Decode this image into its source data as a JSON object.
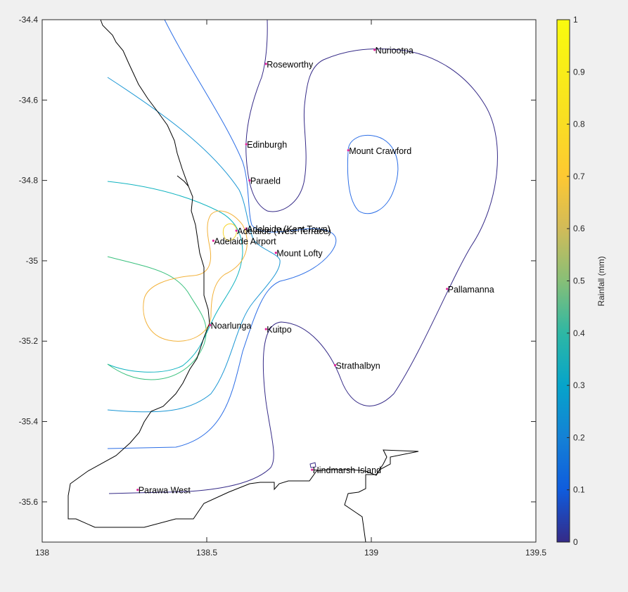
{
  "chart_data": {
    "type": "contour",
    "title": "",
    "xlabel": "",
    "ylabel": "",
    "xlim": [
      138,
      139.5
    ],
    "ylim": [
      -35.7,
      -34.4
    ],
    "x_ticks": [
      "138",
      "138.5",
      "139",
      "139.5"
    ],
    "y_ticks": [
      "-34.4",
      "-34.6",
      "-34.8",
      "-35",
      "-35.2",
      "-35.4",
      "-35.6"
    ],
    "grid": false,
    "colorbar": {
      "label": "Rainfall (mm)",
      "range": [
        0,
        1
      ],
      "ticks": [
        "0",
        "0.1",
        "0.2",
        "0.3",
        "0.4",
        "0.5",
        "0.6",
        "0.7",
        "0.8",
        "0.9",
        "1"
      ],
      "colormap": "parula"
    },
    "stations": [
      {
        "name": "Nuriootpa",
        "lon": 139.01,
        "lat": -34.475
      },
      {
        "name": "Roseworthy",
        "lon": 138.68,
        "lat": -34.51
      },
      {
        "name": "Edinburgh",
        "lon": 138.62,
        "lat": -34.71
      },
      {
        "name": "Mount Crawford",
        "lon": 138.93,
        "lat": -34.725
      },
      {
        "name": "Paraeld",
        "lon": 138.63,
        "lat": -34.8
      },
      {
        "name": "Adelaide (Kent Town)",
        "lon": 138.62,
        "lat": -34.92
      },
      {
        "name": "Adelaide (West Terrace)",
        "lon": 138.59,
        "lat": -34.925
      },
      {
        "name": "Adelaide Airport",
        "lon": 138.52,
        "lat": -34.95
      },
      {
        "name": "Mount Lofty",
        "lon": 138.71,
        "lat": -34.98
      },
      {
        "name": "Pallamanna",
        "lon": 139.23,
        "lat": -35.07
      },
      {
        "name": "Noarlunga",
        "lon": 138.51,
        "lat": -35.16
      },
      {
        "name": "Kuitpo",
        "lon": 138.68,
        "lat": -35.17
      },
      {
        "name": "Strathalbyn",
        "lon": 138.89,
        "lat": -35.26
      },
      {
        "name": "Hindmarsh Island",
        "lon": 138.82,
        "lat": -35.52
      },
      {
        "name": "Parawa West",
        "lon": 138.29,
        "lat": -35.57
      }
    ],
    "contour_levels": [
      {
        "level": 0.1,
        "color": "#352a87"
      },
      {
        "level": 0.2,
        "color": "#2c6ee6"
      },
      {
        "level": 0.3,
        "color": "#1a96d4"
      },
      {
        "level": 0.5,
        "color": "#10b3c0"
      },
      {
        "level": 0.6,
        "color": "#39c07d"
      },
      {
        "level": 0.8,
        "color": "#f2b138"
      },
      {
        "level": 0.9,
        "color": "#f7d52c"
      }
    ]
  }
}
